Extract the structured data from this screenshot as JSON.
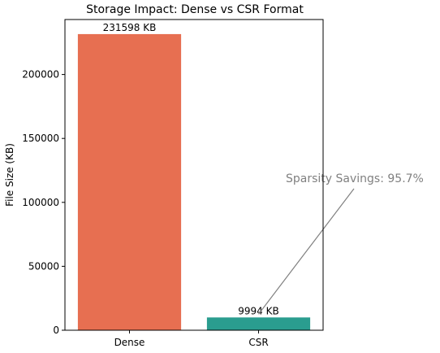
{
  "chart_data": {
    "type": "bar",
    "title": "Storage Impact: Dense vs CSR Format",
    "xlabel": "",
    "ylabel": "File Size (KB)",
    "categories": [
      "Dense",
      "CSR"
    ],
    "values": [
      231598,
      9994
    ],
    "data_labels": [
      "231598 KB",
      "9994 KB"
    ],
    "bar_colors": [
      "#e76f51",
      "#2a9d8f"
    ],
    "ylim": [
      0,
      243000
    ],
    "yticks": [
      0,
      50000,
      100000,
      150000,
      200000
    ],
    "ytick_labels": [
      "0",
      "50000",
      "100000",
      "150000",
      "200000"
    ],
    "grid": false,
    "annotation": {
      "text": "Sparsity Savings: 95.7%",
      "color": "#808080",
      "arrow_to_category": "CSR"
    }
  }
}
